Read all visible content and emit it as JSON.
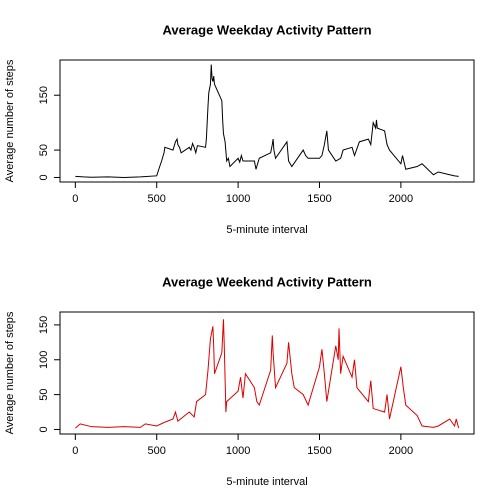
{
  "chart_data": [
    {
      "type": "line",
      "title": "Average Weekday Activity Pattern",
      "x_label": "5-minute interval",
      "y_label": "Average number of steps",
      "color": "#000000",
      "x": [
        0,
        50,
        100,
        200,
        300,
        400,
        500,
        515,
        530,
        545,
        550,
        600,
        615,
        625,
        630,
        640,
        650,
        700,
        710,
        720,
        730,
        740,
        750,
        800,
        805,
        815,
        820,
        830,
        835,
        840,
        845,
        850,
        855,
        900,
        905,
        910,
        920,
        930,
        940,
        950,
        1000,
        1010,
        1020,
        1030,
        1100,
        1110,
        1130,
        1200,
        1210,
        1215,
        1220,
        1230,
        1300,
        1310,
        1330,
        1400,
        1415,
        1430,
        1500,
        1515,
        1530,
        1545,
        1555,
        1600,
        1630,
        1645,
        1700,
        1715,
        1745,
        1800,
        1815,
        1830,
        1845,
        1850,
        1855,
        1900,
        1915,
        1930,
        2000,
        2010,
        2030,
        2100,
        2130,
        2200,
        2230,
        2300,
        2330,
        2355
      ],
      "values": [
        2,
        1,
        0.5,
        1,
        0,
        1,
        3,
        17,
        30,
        45,
        55,
        50,
        65,
        70,
        60,
        55,
        45,
        55,
        50,
        62,
        55,
        45,
        58,
        55,
        70,
        130,
        155,
        170,
        206,
        180,
        175,
        185,
        170,
        140,
        105,
        80,
        65,
        30,
        35,
        20,
        35,
        28,
        40,
        30,
        30,
        15,
        35,
        45,
        60,
        70,
        50,
        35,
        65,
        30,
        20,
        50,
        40,
        35,
        35,
        40,
        60,
        85,
        50,
        30,
        35,
        50,
        55,
        40,
        65,
        70,
        60,
        100,
        90,
        105,
        90,
        85,
        60,
        50,
        25,
        40,
        15,
        20,
        25,
        5,
        10,
        5,
        3,
        2
      ],
      "xlim": [
        -94.2,
        2449.2
      ],
      "ylim": [
        -8.24,
        214.24
      ],
      "xticks": [
        0,
        500,
        1000,
        1500,
        2000
      ],
      "yticks": [
        0,
        50,
        150
      ]
    },
    {
      "type": "line",
      "title": "Average Weekend Activity Pattern",
      "x_label": "5-minute interval",
      "y_label": "Average number of steps",
      "color": "#dd0000",
      "x": [
        0,
        30,
        100,
        200,
        300,
        400,
        430,
        500,
        545,
        600,
        615,
        630,
        700,
        730,
        745,
        800,
        815,
        830,
        845,
        850,
        855,
        900,
        910,
        915,
        925,
        930,
        1000,
        1015,
        1030,
        1045,
        1100,
        1115,
        1130,
        1200,
        1210,
        1215,
        1230,
        1300,
        1310,
        1330,
        1345,
        1400,
        1430,
        1500,
        1515,
        1530,
        1545,
        1600,
        1615,
        1620,
        1630,
        1645,
        1700,
        1715,
        1730,
        1800,
        1815,
        1830,
        1900,
        1915,
        1930,
        2000,
        2015,
        2030,
        2100,
        2130,
        2200,
        2230,
        2300,
        2330,
        2340,
        2355
      ],
      "values": [
        2,
        8,
        4,
        3,
        4,
        3,
        8,
        5,
        10,
        15,
        25,
        12,
        25,
        18,
        40,
        50,
        85,
        130,
        148,
        120,
        80,
        110,
        158,
        120,
        25,
        40,
        55,
        75,
        45,
        80,
        60,
        40,
        35,
        85,
        135,
        110,
        60,
        95,
        125,
        80,
        60,
        50,
        35,
        90,
        115,
        80,
        40,
        120,
        100,
        145,
        80,
        105,
        75,
        100,
        60,
        40,
        70,
        30,
        25,
        50,
        15,
        90,
        60,
        35,
        20,
        5,
        3,
        5,
        15,
        5,
        15,
        2
      ],
      "xlim": [
        -94.2,
        2449.2
      ],
      "ylim": [
        -6.5,
        168.5
      ],
      "xticks": [
        0,
        500,
        1000,
        1500,
        2000
      ],
      "yticks": [
        0,
        50,
        100,
        150
      ]
    }
  ]
}
